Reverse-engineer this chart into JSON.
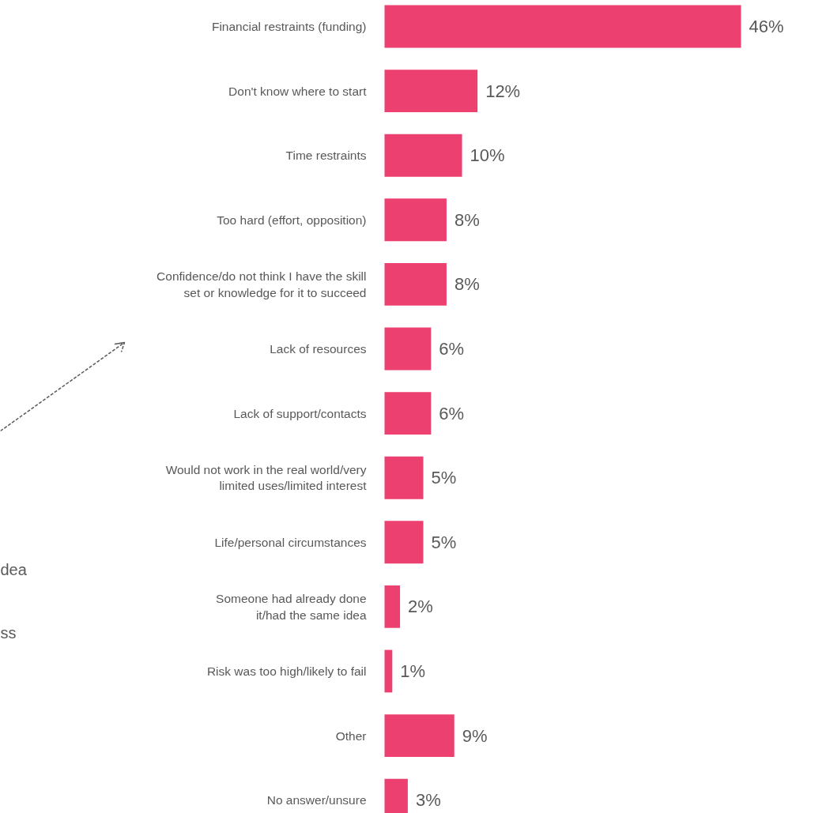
{
  "chart_data": {
    "type": "bar",
    "orientation": "horizontal",
    "relative": false,
    "data_labels": true,
    "grid": false,
    "tick_labels": false,
    "categories": [
      "Financial restraints (funding)",
      "Don't know where to start",
      "Time restraints",
      "Too hard (effort, opposition)",
      "Confidence/do not think I have the skill\nset or knowledge for it to succeed",
      "Lack of resources",
      "Lack of support/contacts",
      "Would not work in the real world/very\nlimited uses/limited interest",
      "Life/personal circumstances",
      "Someone had already done\nit/had the same idea",
      "Risk was too high/likely to fail",
      "Other",
      "No answer/unsure"
    ],
    "values": [
      46,
      12,
      10,
      8,
      8,
      6,
      6,
      5,
      5,
      2,
      1,
      9,
      3
    ],
    "value_labels": [
      "46%",
      "12%",
      "10%",
      "8%",
      "8%",
      "6%",
      "6%",
      "5%",
      "5%",
      "2%",
      "1%",
      "9%",
      "3%"
    ],
    "color": "#ec4170",
    "annotations": [
      "dea",
      "ss"
    ]
  }
}
